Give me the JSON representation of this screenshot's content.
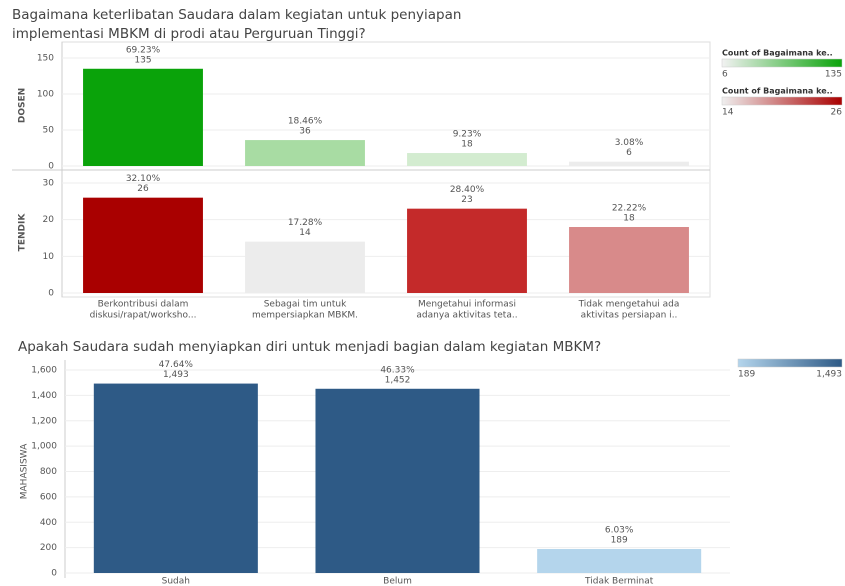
{
  "chart_data": [
    {
      "type": "bar",
      "title": [
        "Bagaimana keterlibatan Saudara dalam kegiatan untuk penyiapan",
        "implementasi MBKM di prodi atau Perguruan Tinggi?"
      ],
      "categories": [
        [
          "Berkontribusi dalam",
          "diskusi/rapat/worksho..."
        ],
        [
          "Sebagai tim untuk",
          "mempersiapkan MBKM."
        ],
        [
          "Mengetahui informasi",
          "adanya aktivitas teta.."
        ],
        [
          "Tidak mengetahui ada",
          "aktivitas persiapan i.."
        ]
      ],
      "grid": true,
      "series": [
        {
          "name": "DOSEN",
          "values": [
            135,
            36,
            18,
            6
          ],
          "share_labels": [
            "69.23%",
            "18.46%",
            "9.23%",
            "3.08%"
          ],
          "colors": [
            "#0aa30a",
            "#a8dca3",
            "#d3ecd0",
            "#ececec"
          ],
          "ylim": [
            0,
            168
          ],
          "yticks": [
            0,
            50,
            100,
            150
          ]
        },
        {
          "name": "TENDIK",
          "values": [
            26,
            14,
            23,
            18
          ],
          "share_labels": [
            "32.10%",
            "17.28%",
            "28.40%",
            "22.22%"
          ],
          "colors": [
            "#a90000",
            "#ececec",
            "#c42a2a",
            "#d88a8a"
          ],
          "ylim": [
            0,
            33
          ],
          "yticks": [
            0,
            10,
            20,
            30
          ]
        }
      ],
      "legends": [
        {
          "title": "Count of Bagaimana ke..",
          "min": 6,
          "max": 135,
          "colors": [
            "#f2f2f2",
            "#0aa30a"
          ]
        },
        {
          "title": "Count of Bagaimana ke..",
          "min": 14,
          "max": 26,
          "colors": [
            "#efefef",
            "#a90000"
          ]
        }
      ]
    },
    {
      "type": "bar",
      "title": "Apakah Saudara sudah menyiapkan diri untuk menjadi bagian dalam kegiatan MBKM?",
      "y_label": "MAHASISWA",
      "categories": [
        "Sudah",
        "Belum",
        "Tidak Berminat"
      ],
      "values": [
        1493,
        1452,
        189
      ],
      "value_labels": [
        "1,493",
        "1,452",
        "189"
      ],
      "share_labels": [
        "47.64%",
        "46.33%",
        "6.03%"
      ],
      "colors": [
        "#2e5a86",
        "#2e5a86",
        "#b4d5ec"
      ],
      "ylim": [
        0,
        1600
      ],
      "yticks": [
        0,
        200,
        400,
        600,
        800,
        {
          "value": 1000,
          "label": "1,000"
        },
        {
          "value": 1200,
          "label": "1,200"
        },
        {
          "value": 1400,
          "label": "1,400"
        },
        {
          "value": 1600,
          "label": "1,600"
        }
      ],
      "grid": true,
      "legend": {
        "min": 189,
        "max": {
          "value": 1493,
          "label": "1,493"
        },
        "colors": [
          "#b4d5ec",
          "#2e5a86"
        ]
      }
    }
  ]
}
